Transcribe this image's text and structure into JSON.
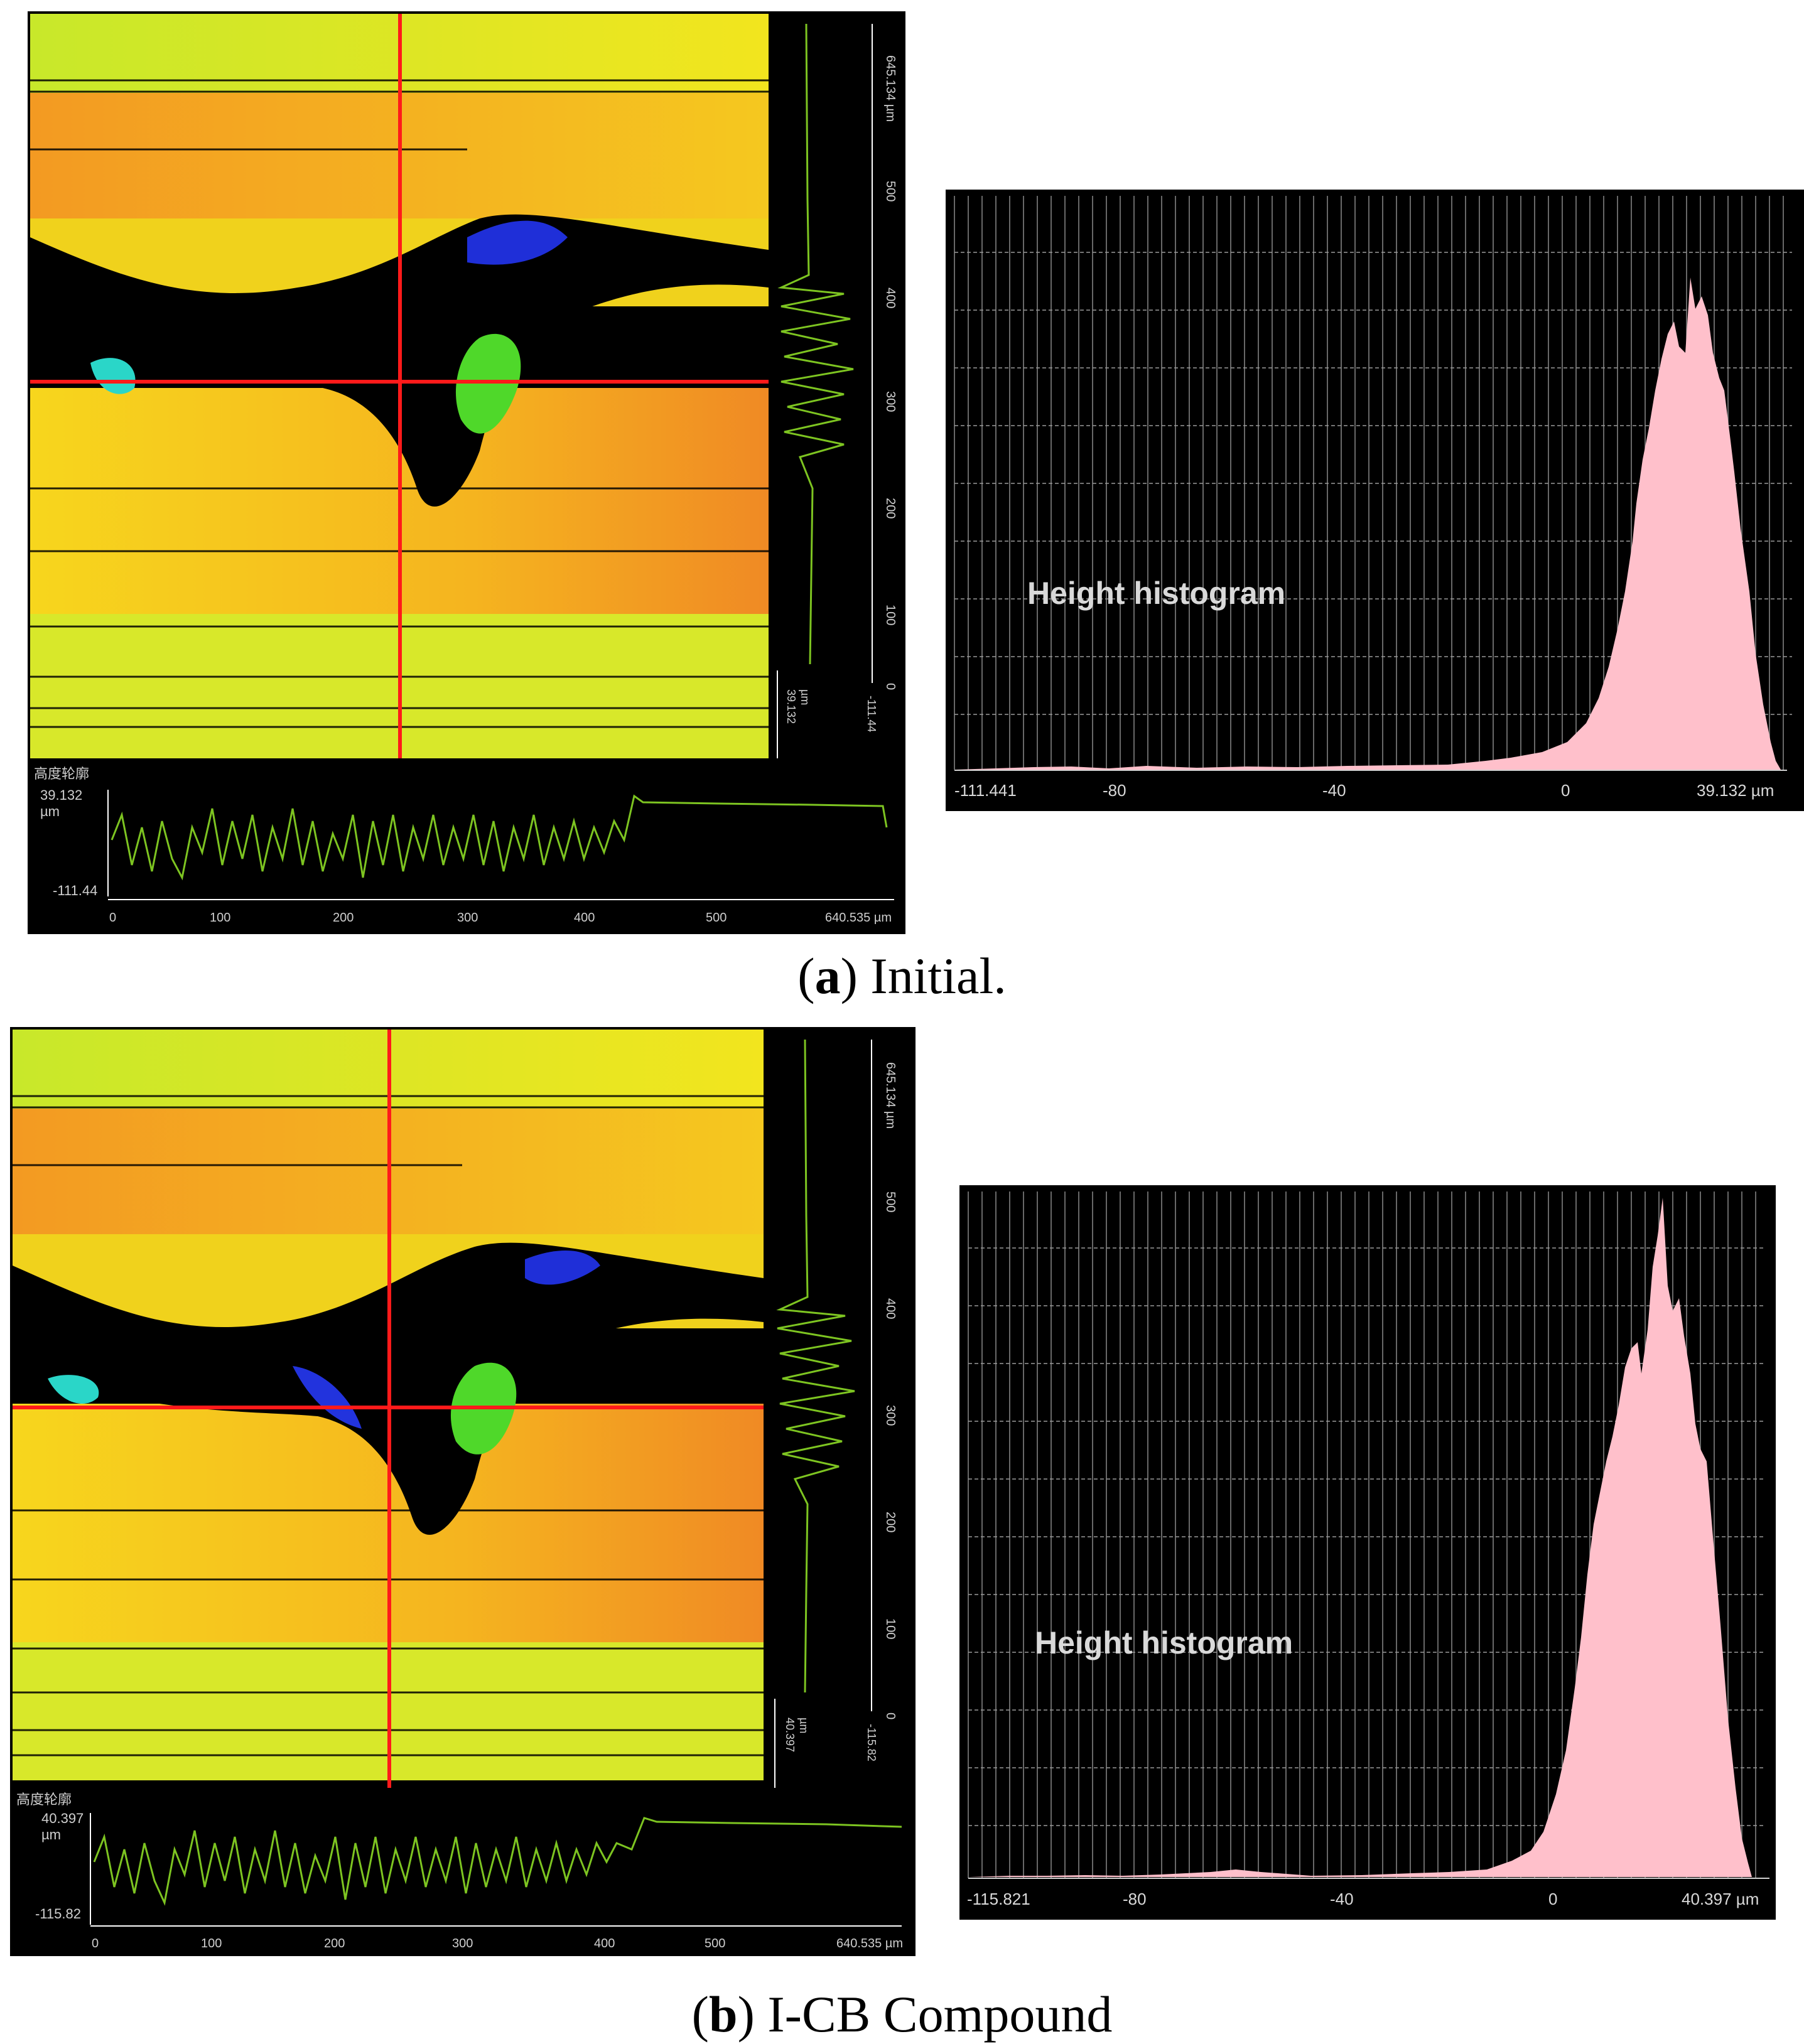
{
  "panels": [
    {
      "caption": {
        "letter": "a",
        "text": "Initial."
      },
      "map": {
        "vertical_axis_max": "645.134 µm",
        "vertical_axis_ticks": [
          "500",
          "400",
          "300",
          "200",
          "100",
          "0"
        ],
        "vertical_profile_max": "39.132",
        "vertical_profile_unit": "µm",
        "vertical_profile_min": "-111.44",
        "horizontal_profile_title": "高度轮廓",
        "horizontal_profile_max": "39.132",
        "horizontal_profile_unit": "µm",
        "horizontal_profile_min": "-111.44",
        "horizontal_axis_ticks": [
          "0",
          "100",
          "200",
          "300",
          "400",
          "500"
        ],
        "horizontal_axis_max": "640.535 µm"
      },
      "histogram": {
        "label": "Height histogram",
        "x_min_label": "-111.441",
        "x_max_label": "39.132 µm",
        "x_ticks": [
          "-80",
          "-40",
          "0"
        ]
      }
    },
    {
      "caption": {
        "letter": "b",
        "text": "I-CB Compound"
      },
      "map": {
        "vertical_axis_max": "645.134 µm",
        "vertical_axis_ticks": [
          "500",
          "400",
          "300",
          "200",
          "100",
          "0"
        ],
        "vertical_profile_max": "40.397",
        "vertical_profile_unit": "µm",
        "vertical_profile_min": "-115.82",
        "horizontal_profile_title": "高度轮廓",
        "horizontal_profile_max": "40.397",
        "horizontal_profile_unit": "µm",
        "horizontal_profile_min": "-115.82",
        "horizontal_axis_ticks": [
          "0",
          "100",
          "200",
          "300",
          "400",
          "500"
        ],
        "horizontal_axis_max": "640.535 µm"
      },
      "histogram": {
        "label": "Height histogram",
        "x_min_label": "-115.821",
        "x_max_label": "40.397 µm",
        "x_ticks": [
          "-80",
          "-40",
          "0"
        ]
      }
    }
  ],
  "colors": {
    "surface_orange": "#f08a24",
    "surface_yellow": "#f4d21a",
    "surface_green": "#9fdf2a",
    "defect_blue": "#2233dd",
    "crosshair": "#ff1a1a",
    "profile_line": "#7dc421",
    "histogram_fill": "#ffc0cb"
  }
}
